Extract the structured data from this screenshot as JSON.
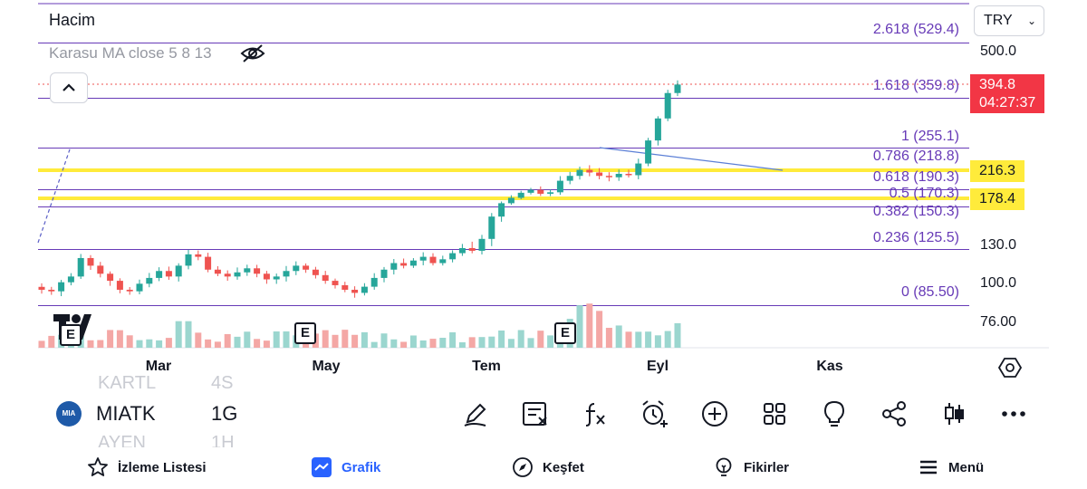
{
  "pane": {
    "volume_label": "Hacim",
    "indicator_label": "Karasu MA close 5 8 13"
  },
  "currency": "TRY",
  "price_axis": [
    "500.0",
    "130.0",
    "100.0",
    "76.00"
  ],
  "last_price": {
    "value": "394.8",
    "countdown": "04:27:37",
    "color": "#f23645"
  },
  "level_tags": [
    "216.3",
    "178.4"
  ],
  "fib_levels": [
    {
      "label": "2.618 (529.4)"
    },
    {
      "label": "1.618 (359.8)"
    },
    {
      "label": "1 (255.1)"
    },
    {
      "label": "0.786 (218.8)"
    },
    {
      "label": "0.618 (190.3)"
    },
    {
      "label": "0.5 (170.3)"
    },
    {
      "label": "0.382 (150.3)"
    },
    {
      "label": "0.236 (125.5)"
    },
    {
      "label": "0 (85.50)"
    }
  ],
  "months": [
    "Mar",
    "May",
    "Tem",
    "Eyl",
    "Kas"
  ],
  "earnings_badges": [
    "E",
    "E",
    "E"
  ],
  "symbol": {
    "avatar": "MIA",
    "name": "MIATK",
    "interval": "1G",
    "prev_name": "KARTL",
    "prev_interval": "4S",
    "next_name": "AYEN",
    "next_interval": "1H"
  },
  "toolbar_icons": [
    "pencil-icon",
    "clear-drawings-icon",
    "indicators-icon",
    "alert-icon",
    "add-icon",
    "layouts-icon",
    "ideas-icon",
    "share-icon",
    "candle-type-icon",
    "more-icon"
  ],
  "nav": [
    {
      "label": "İzleme Listesi",
      "icon": "star-icon"
    },
    {
      "label": "Grafik",
      "icon": "chart-icon"
    },
    {
      "label": "Keşfet",
      "icon": "compass-icon"
    },
    {
      "label": "Fikirler",
      "icon": "lightbulb-icon"
    },
    {
      "label": "Menü",
      "icon": "menu-icon"
    }
  ],
  "colors": {
    "up": "#26a69a",
    "down": "#ef5350",
    "fib": "#673ab7",
    "highlight": "#ffeb3b",
    "accent": "#2962ff"
  },
  "chart_data": {
    "type": "candlestick",
    "symbol": "MIATK",
    "interval": "1G",
    "x_ticks": [
      "Mar",
      "May",
      "Tem",
      "Eyl",
      "Kas"
    ],
    "close_series": [
      95,
      94,
      100,
      104,
      118,
      112,
      106,
      101,
      95,
      94,
      99,
      103,
      108,
      104,
      112,
      121,
      119,
      109,
      106,
      104,
      107,
      110,
      106,
      102,
      104,
      108,
      112,
      109,
      105,
      101,
      98,
      95,
      93,
      97,
      103,
      109,
      114,
      112,
      116,
      119,
      114,
      117,
      122,
      126,
      124,
      131,
      144,
      159,
      173,
      183,
      189,
      181,
      184,
      202,
      209,
      218,
      214,
      209,
      207,
      212,
      210,
      228,
      268,
      312,
      372,
      394.8
    ],
    "last_close": 394.8,
    "horizontal_levels": [
      216.3,
      178.4
    ],
    "fibonacci": [
      {
        "ratio": 2.618,
        "price": 529.4
      },
      {
        "ratio": 1.618,
        "price": 359.8
      },
      {
        "ratio": 1,
        "price": 255.1
      },
      {
        "ratio": 0.786,
        "price": 218.8
      },
      {
        "ratio": 0.618,
        "price": 190.3
      },
      {
        "ratio": 0.5,
        "price": 170.3
      },
      {
        "ratio": 0.382,
        "price": 150.3
      },
      {
        "ratio": 0.236,
        "price": 125.5
      },
      {
        "ratio": 0,
        "price": 85.5
      }
    ]
  }
}
